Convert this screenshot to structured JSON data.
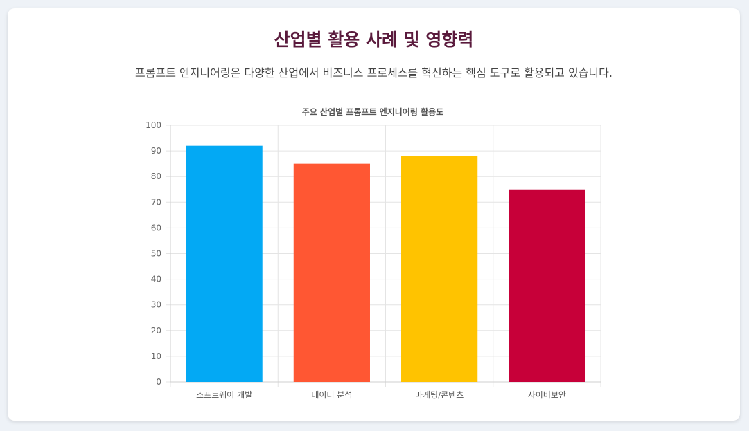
{
  "header": {
    "title": "산업별 활용 사례 및 영향력",
    "subtitle": "프롬프트 엔지니어링은 다양한 산업에서 비즈니스 프로세스를 혁신하는 핵심 도구로 활용되고 있습니다."
  },
  "chart_data": {
    "type": "bar",
    "title": "주요 산업별 프롬프트 엔지니어링 활용도",
    "categories": [
      "소프트웨어 개발",
      "데이터 분석",
      "마케팅/콘텐츠",
      "사이버보안"
    ],
    "values": [
      92,
      85,
      88,
      75
    ],
    "colors": [
      "#03a9f4",
      "#ff5733",
      "#ffc300",
      "#c70039"
    ],
    "ylim": [
      0,
      100
    ],
    "yticks": [
      0,
      10,
      20,
      30,
      40,
      50,
      60,
      70,
      80,
      90,
      100
    ],
    "grid": true,
    "legend": "none"
  }
}
